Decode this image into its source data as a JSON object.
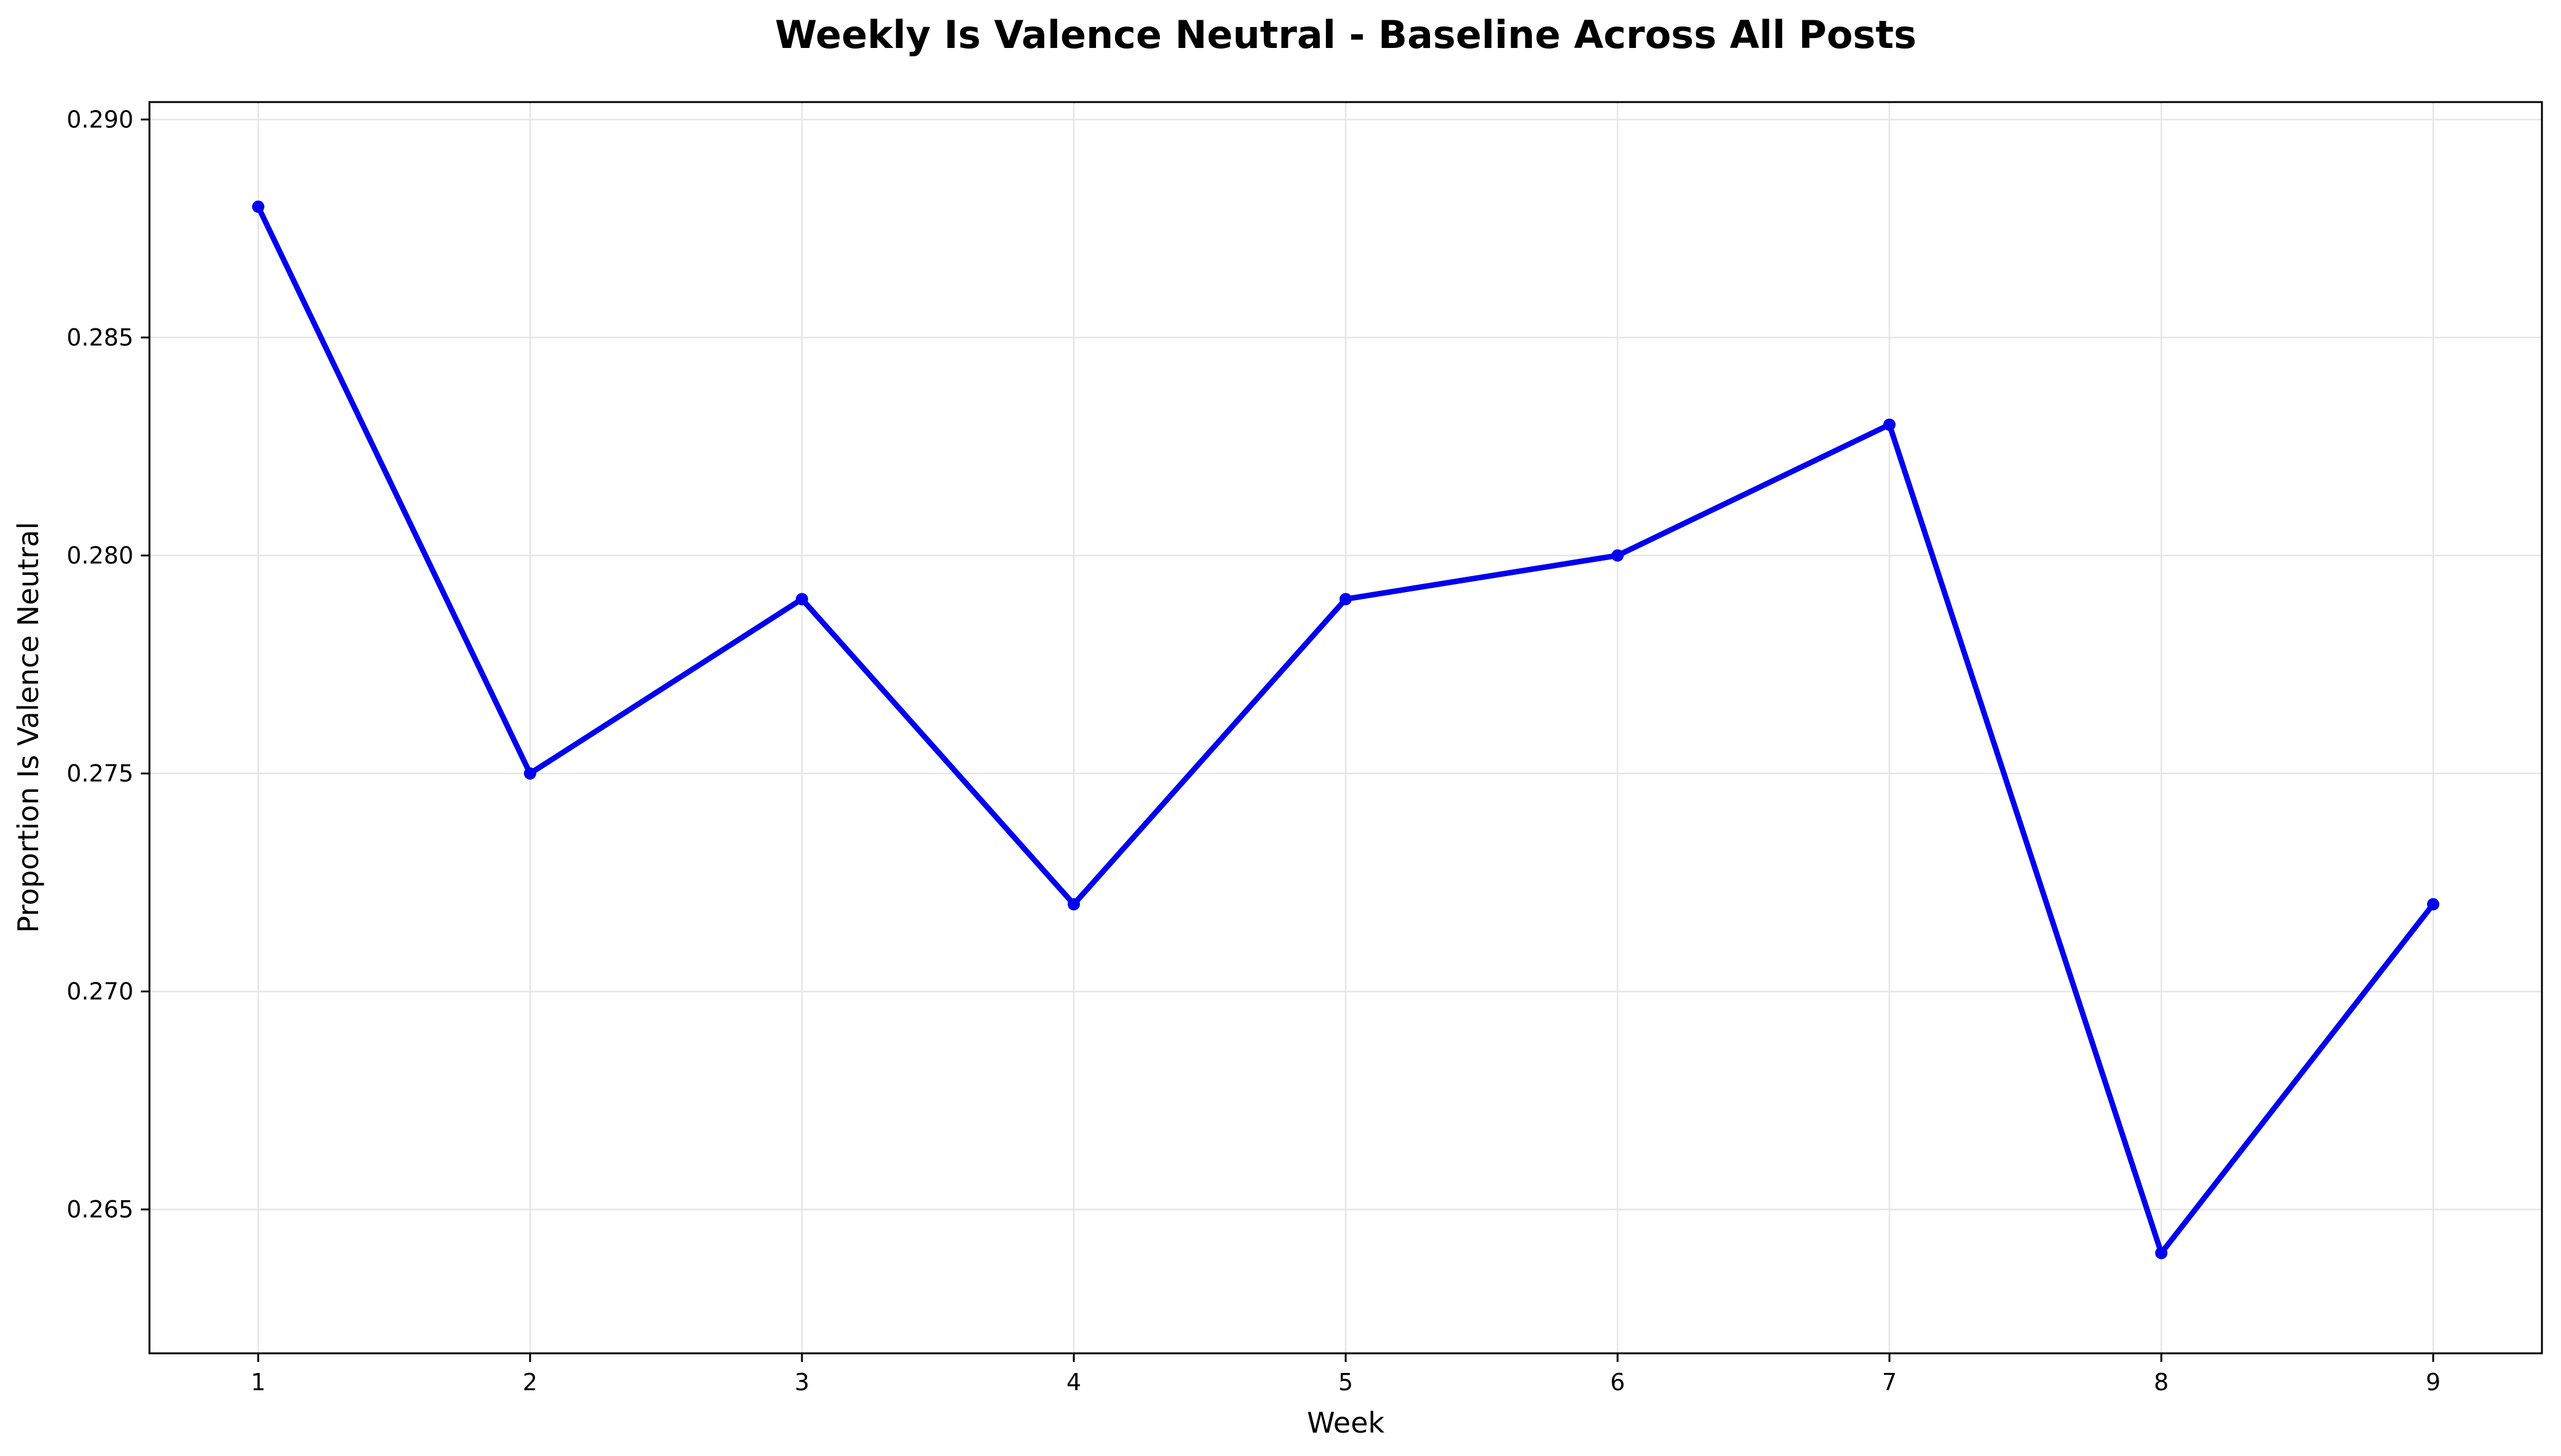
{
  "chart_data": {
    "type": "line",
    "title": "Weekly Is Valence Neutral - Baseline Across All Posts",
    "xlabel": "Week",
    "ylabel": "Proportion Is Valence Neutral",
    "x": [
      1,
      2,
      3,
      4,
      5,
      6,
      7,
      8,
      9
    ],
    "xticks": [
      "1",
      "2",
      "3",
      "4",
      "5",
      "6",
      "7",
      "8",
      "9"
    ],
    "yticks": [
      "0.265",
      "0.270",
      "0.275",
      "0.280",
      "0.285",
      "0.290"
    ],
    "series": [
      {
        "values": [
          0.288,
          0.275,
          0.279,
          0.272,
          0.279,
          0.28,
          0.283,
          0.264,
          0.272
        ],
        "color": "#0000ee",
        "marker": "circle"
      }
    ],
    "xlim": [
      0.6,
      9.4
    ],
    "ylim": [
      0.2617,
      0.2904
    ],
    "grid": true,
    "legend": "none"
  }
}
